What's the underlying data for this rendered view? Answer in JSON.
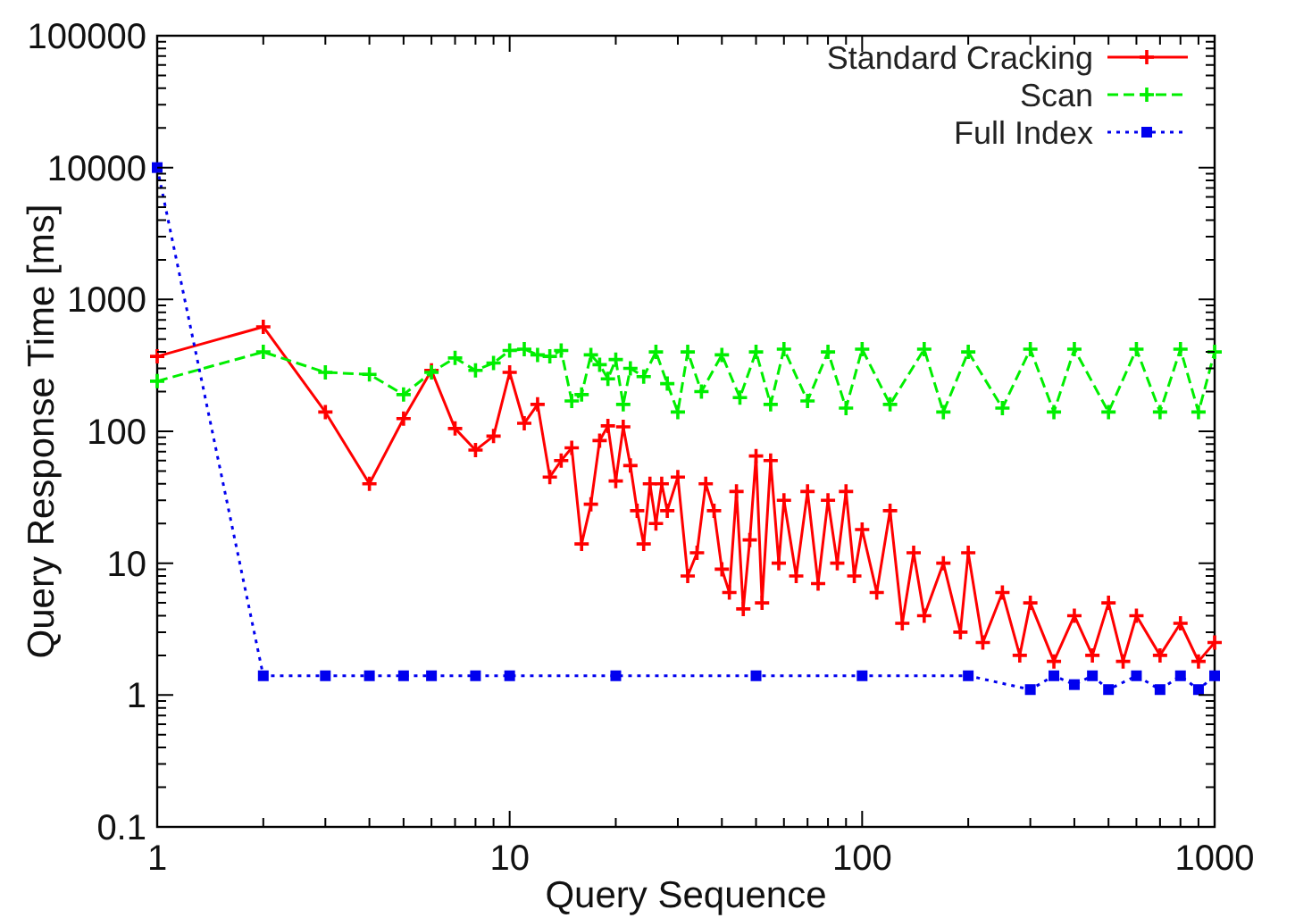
{
  "chart_data": {
    "type": "line",
    "xlabel": "Query Sequence",
    "ylabel": "Query Response Time [ms]",
    "log": "xy",
    "xlim": [
      1,
      1000
    ],
    "ylim": [
      0.1,
      100000
    ],
    "xticks": [
      1,
      10,
      100,
      1000
    ],
    "yticks": [
      0.1,
      1,
      10,
      100,
      1000,
      10000,
      100000
    ],
    "grid": false,
    "legend": "top right",
    "series": [
      {
        "name": "Standard Cracking",
        "color": "#ff0000",
        "marker": "cross",
        "line_style": "solid",
        "x": [
          1,
          2,
          3,
          4,
          5,
          6,
          7,
          8,
          9,
          10,
          11,
          12,
          13,
          14,
          15,
          16,
          17,
          18,
          19,
          20,
          21,
          22,
          23,
          24,
          25,
          26,
          27,
          28,
          30,
          32,
          34,
          36,
          38,
          40,
          42,
          44,
          46,
          48,
          50,
          52,
          55,
          58,
          60,
          65,
          70,
          75,
          80,
          85,
          90,
          95,
          100,
          110,
          120,
          130,
          140,
          150,
          170,
          190,
          200,
          220,
          250,
          280,
          300,
          350,
          400,
          450,
          500,
          550,
          600,
          700,
          800,
          900,
          1000
        ],
        "values": [
          370,
          620,
          140,
          40,
          125,
          290,
          105,
          72,
          92,
          280,
          115,
          160,
          45,
          60,
          75,
          14,
          28,
          85,
          110,
          42,
          108,
          55,
          25,
          14,
          40,
          20,
          40,
          25,
          45,
          8,
          12,
          40,
          25,
          9,
          6,
          35,
          4.5,
          15,
          65,
          5,
          60,
          10,
          30,
          8,
          35,
          7,
          30,
          10,
          35,
          8,
          18,
          6,
          25,
          3.5,
          12,
          4,
          10,
          3,
          12,
          2.5,
          6,
          2,
          5,
          1.8,
          4,
          2,
          5,
          1.8,
          4,
          2,
          3.5,
          1.8,
          2.5
        ]
      },
      {
        "name": "Scan",
        "color": "#00ee00",
        "marker": "cross",
        "line_style": "dashed",
        "x": [
          1,
          2,
          3,
          4,
          5,
          6,
          7,
          8,
          9,
          10,
          11,
          12,
          13,
          14,
          15,
          16,
          17,
          18,
          19,
          20,
          21,
          22,
          24,
          26,
          28,
          30,
          32,
          35,
          40,
          45,
          50,
          55,
          60,
          70,
          80,
          90,
          100,
          120,
          150,
          170,
          200,
          250,
          300,
          350,
          400,
          500,
          600,
          700,
          800,
          900,
          1000
        ],
        "values": [
          240,
          400,
          280,
          270,
          190,
          280,
          360,
          290,
          330,
          410,
          420,
          380,
          370,
          410,
          170,
          190,
          380,
          320,
          250,
          350,
          160,
          300,
          260,
          400,
          230,
          140,
          400,
          200,
          380,
          180,
          400,
          160,
          420,
          170,
          400,
          150,
          420,
          160,
          420,
          140,
          400,
          150,
          420,
          140,
          420,
          140,
          420,
          140,
          420,
          140,
          400
        ]
      },
      {
        "name": "Full Index",
        "color": "#0000ee",
        "marker": "square",
        "line_style": "dotted",
        "x": [
          1,
          2,
          3,
          4,
          5,
          6,
          8,
          10,
          20,
          50,
          100,
          200,
          300,
          350,
          400,
          450,
          500,
          600,
          700,
          800,
          900,
          1000
        ],
        "values": [
          10000,
          1.4,
          1.4,
          1.4,
          1.4,
          1.4,
          1.4,
          1.4,
          1.4,
          1.4,
          1.4,
          1.4,
          1.1,
          1.4,
          1.2,
          1.4,
          1.1,
          1.4,
          1.1,
          1.4,
          1.1,
          1.4
        ]
      }
    ]
  }
}
